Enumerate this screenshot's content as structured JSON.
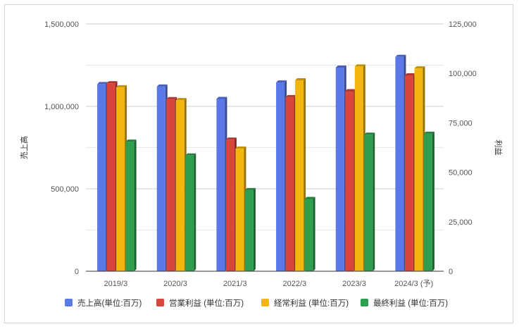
{
  "chart_data": {
    "type": "bar",
    "categories": [
      "2019/3",
      "2020/3",
      "2021/3",
      "2022/3",
      "2023/3",
      "2024/3 (予)"
    ],
    "series": [
      {
        "name": "売上高(単位:百万)",
        "axis": "left",
        "color": "#5b78e8",
        "values": [
          1135000,
          1120000,
          1045000,
          1145000,
          1235000,
          1300000
        ]
      },
      {
        "name": "営業利益 (単位:百万)",
        "axis": "right",
        "color": "#d9443b",
        "values": [
          95000,
          87000,
          66500,
          88000,
          91000,
          99000
        ]
      },
      {
        "name": "経常利益 (単位:百万)",
        "axis": "right",
        "color": "#f2b60c",
        "values": [
          93000,
          86500,
          62000,
          96500,
          103500,
          102500
        ]
      },
      {
        "name": "最終利益 (単位:百万)",
        "axis": "right",
        "color": "#2f9e4f",
        "values": [
          65500,
          58500,
          41000,
          36500,
          69000,
          69500
        ]
      }
    ],
    "y_left": {
      "label": "売上高",
      "ylim": [
        0,
        1500000
      ],
      "ticks": [
        "0",
        "500,000",
        "1,000,000",
        "1,500,000"
      ],
      "tick_values": [
        0,
        500000,
        1000000,
        1500000
      ]
    },
    "y_right": {
      "label": "利益",
      "ylim": [
        0,
        125000
      ],
      "ticks": [
        "0",
        "25,000",
        "50,000",
        "75,000",
        "100,000",
        "125,000"
      ],
      "tick_values": [
        0,
        25000,
        50000,
        75000,
        100000,
        125000
      ]
    },
    "grid": true,
    "legend_position": "bottom",
    "style": "3d-bars"
  }
}
